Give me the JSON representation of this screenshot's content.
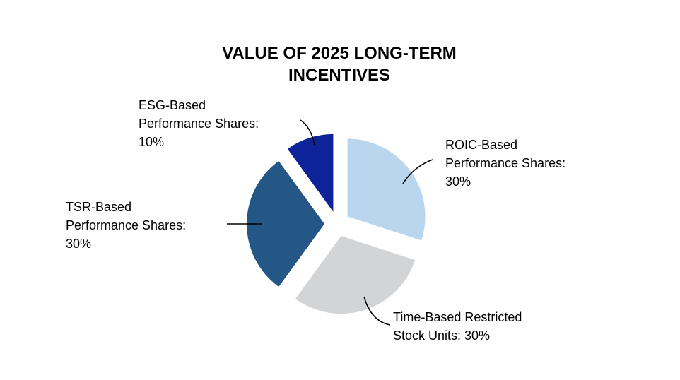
{
  "chart_data": {
    "type": "pie",
    "title": [
      "VALUE OF 2025 LONG-TERM",
      "INCENTIVES"
    ],
    "slices": [
      {
        "name": "ROIC-Based Performance Shares",
        "value": 30,
        "color": "#bad6ee",
        "label_lines": [
          "ROIC-Based",
          "Performance Shares:",
          "30%"
        ]
      },
      {
        "name": "Time-Based Restricted Stock Units",
        "value": 30,
        "color": "#d3d4d6",
        "label_lines": [
          "Time-Based Restricted",
          "Stock Units: 30%"
        ]
      },
      {
        "name": "TSR-Based Performance Shares",
        "value": 30,
        "color": "#245686",
        "label_lines": [
          "TSR-Based",
          "Performance Shares:",
          "30%"
        ]
      },
      {
        "name": "ESG-Based Performance Shares",
        "value": 10,
        "color": "#0c239a",
        "label_lines": [
          "ESG-Based",
          "Performance Shares:",
          "10%"
        ]
      }
    ]
  }
}
